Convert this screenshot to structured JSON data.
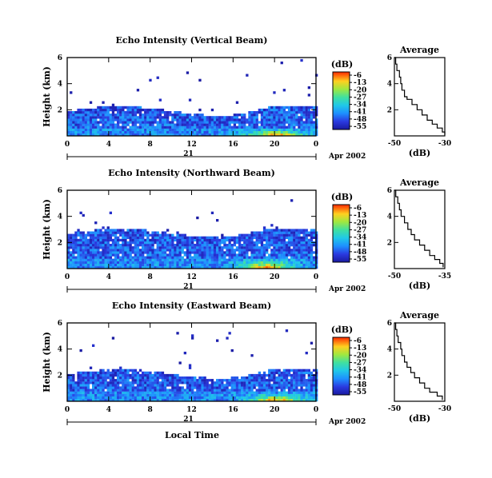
{
  "chart_data": [
    {
      "type": "heatmap",
      "title": "Echo Intensity (Vertical Beam)",
      "ylabel": "Height (km)",
      "yticks": [
        "6",
        "4",
        "2"
      ],
      "ylim": [
        0,
        6
      ],
      "xticks": [
        "0",
        "4",
        "8",
        "12",
        "16",
        "20",
        "0"
      ],
      "xlim": [
        0,
        24
      ],
      "day_label": "21",
      "date_label": "Apr 2002",
      "colorbar": {
        "unit": "(dB)",
        "ticks": [
          "-6",
          "-13",
          "-20",
          "-27",
          "-34",
          "-41",
          "-48",
          "-55"
        ],
        "range": [
          -55,
          -6
        ]
      },
      "profile": {
        "title": "Average",
        "xlabel": "(dB)",
        "xticks": [
          "-50",
          "-30"
        ],
        "xlim": [
          -50,
          -30
        ],
        "yticks": [
          "6",
          "4",
          "2"
        ],
        "x": [
          -50,
          -49.5,
          -49,
          -48,
          -47.5,
          -47,
          -46,
          -45,
          -43,
          -41,
          -39,
          -37,
          -35,
          -33,
          -31,
          -30
        ],
        "y": [
          6,
          5.5,
          5,
          4.5,
          4,
          3.5,
          3,
          2.8,
          2.4,
          2.0,
          1.6,
          1.2,
          0.9,
          0.6,
          0.3,
          0.1
        ]
      },
      "field": {
        "base_km": 1.0,
        "top_km": 1.8,
        "scatter_top_km": 6,
        "peak_hour": 20,
        "core_db": -22
      }
    },
    {
      "type": "heatmap",
      "title": "Echo Intensity (Northward Beam)",
      "ylabel": "Height (km)",
      "yticks": [
        "6",
        "4",
        "2"
      ],
      "ylim": [
        0,
        6
      ],
      "xticks": [
        "0",
        "4",
        "8",
        "12",
        "16",
        "20",
        "0"
      ],
      "xlim": [
        0,
        24
      ],
      "day_label": "21",
      "date_label": "Apr 2002",
      "colorbar": {
        "unit": "(dB)",
        "ticks": [
          "-6",
          "-13",
          "-20",
          "-27",
          "-34",
          "-41",
          "-48",
          "-55"
        ],
        "range": [
          -55,
          -6
        ]
      },
      "profile": {
        "title": "Average",
        "xlabel": "(dB)",
        "xticks": [
          "-50",
          "-35"
        ],
        "xlim": [
          -50,
          -35
        ],
        "yticks": [
          "6",
          "4",
          "2"
        ],
        "x": [
          -50,
          -49.6,
          -49,
          -48.5,
          -48,
          -47,
          -46,
          -45,
          -44,
          -42.5,
          -41,
          -39.5,
          -38,
          -36.5,
          -35.5
        ],
        "y": [
          6,
          5.5,
          5,
          4.5,
          4,
          3.5,
          3,
          2.6,
          2.2,
          1.8,
          1.4,
          1.0,
          0.7,
          0.4,
          0.1
        ]
      },
      "field": {
        "base_km": 1.5,
        "top_km": 2.6,
        "scatter_top_km": 6,
        "peak_hour": 19,
        "core_db": -14
      }
    },
    {
      "type": "heatmap",
      "title": "Echo Intensity (Eastward Beam)",
      "ylabel": "Height (km)",
      "yticks": [
        "6",
        "4",
        "2"
      ],
      "ylim": [
        0,
        6
      ],
      "xticks": [
        "0",
        "4",
        "8",
        "12",
        "16",
        "20",
        "0"
      ],
      "xlim": [
        0,
        24
      ],
      "day_label": "21",
      "date_label": "Apr 2002",
      "colorbar": {
        "unit": "(dB)",
        "ticks": [
          "-6",
          "-13",
          "-20",
          "-27",
          "-34",
          "-41",
          "-48",
          "-55"
        ],
        "range": [
          -55,
          -6
        ]
      },
      "profile": {
        "title": "Average",
        "xlabel": "(dB)",
        "xticks": [
          "-50",
          "-30"
        ],
        "xlim": [
          -50,
          -30
        ],
        "yticks": [
          "6",
          "4",
          "2"
        ],
        "x": [
          -50,
          -49.5,
          -49,
          -48.5,
          -47.5,
          -47,
          -46,
          -45,
          -43.5,
          -42,
          -40,
          -38,
          -36,
          -33,
          -31
        ],
        "y": [
          6,
          5.5,
          5,
          4.5,
          4,
          3.5,
          3,
          2.6,
          2.2,
          1.8,
          1.4,
          1.0,
          0.7,
          0.4,
          0.1
        ]
      },
      "field": {
        "base_km": 1.2,
        "top_km": 2.0,
        "scatter_top_km": 6,
        "peak_hour": 20,
        "core_db": -16
      }
    }
  ],
  "xaxis_label": "Local Time"
}
